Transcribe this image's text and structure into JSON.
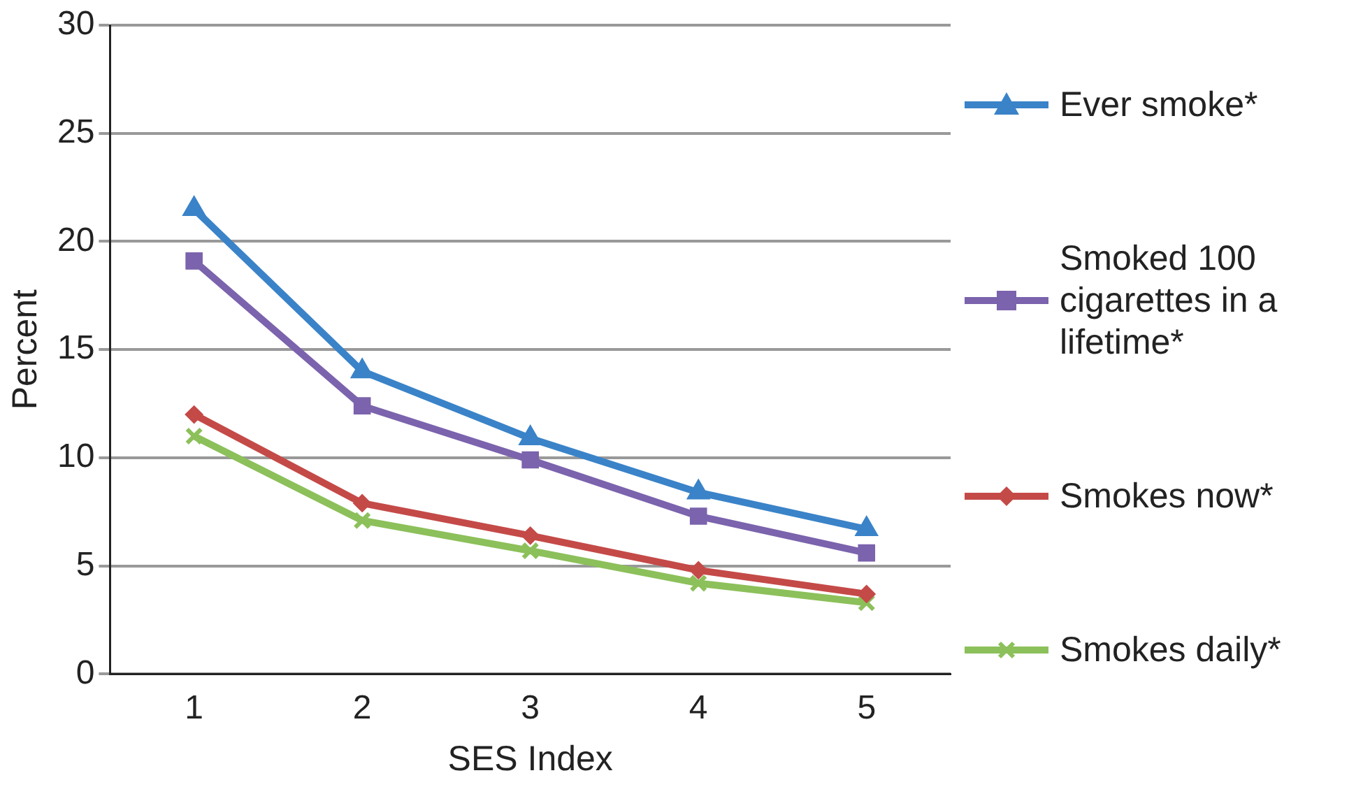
{
  "chart_data": {
    "type": "line",
    "xlabel": "SES Index",
    "ylabel": "Percent",
    "categories": [
      "1",
      "2",
      "3",
      "4",
      "5"
    ],
    "ylim": [
      0,
      30
    ],
    "yticks": [
      0,
      5,
      10,
      15,
      20,
      25,
      30
    ],
    "grid": "y",
    "legend": "right",
    "series": [
      {
        "name": "Ever smoke*",
        "color": "#3a83c8",
        "marker": "triangle",
        "values": [
          21.5,
          14.0,
          10.9,
          8.4,
          6.7
        ]
      },
      {
        "name": "Smoked 100 cigarettes in a lifetime*",
        "color": "#7b63ad",
        "marker": "square",
        "values": [
          19.1,
          12.4,
          9.9,
          7.3,
          5.6
        ]
      },
      {
        "name": "Smokes now*",
        "color": "#c44a48",
        "marker": "diamond",
        "values": [
          12.0,
          7.9,
          6.4,
          4.8,
          3.7
        ]
      },
      {
        "name": "Smokes daily*",
        "color": "#8cc05a",
        "marker": "cross",
        "values": [
          11.0,
          7.1,
          5.7,
          4.2,
          3.3
        ]
      }
    ]
  }
}
